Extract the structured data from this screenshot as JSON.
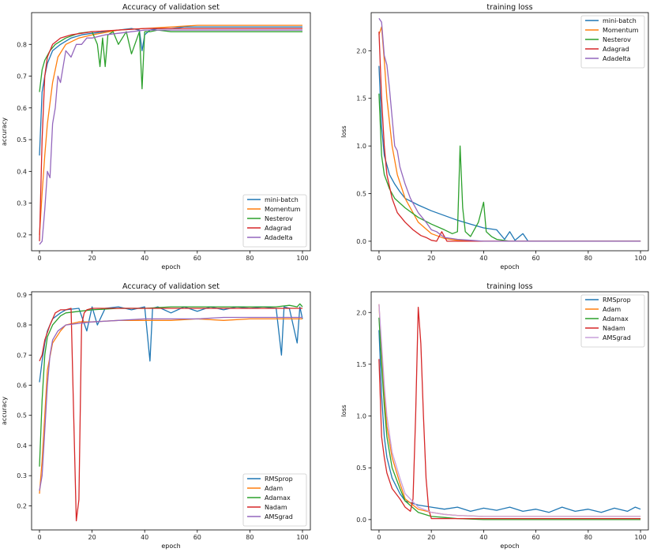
{
  "chart_data": [
    {
      "type": "line",
      "title": "Accuracy of validation set",
      "xlabel": "epoch",
      "ylabel": "accuracy",
      "xlim": [
        -3,
        103
      ],
      "ylim": [
        0.15,
        0.9
      ],
      "xticks": [
        0,
        20,
        40,
        60,
        80,
        100
      ],
      "yticks": [
        0.2,
        0.3,
        0.4,
        0.5,
        0.6,
        0.7,
        0.8
      ],
      "legend_position": "lower-right",
      "series": [
        {
          "name": "mini-batch",
          "color": "#1f77b4",
          "x": [
            0,
            1,
            2,
            3,
            5,
            8,
            12,
            16,
            20,
            25,
            30,
            35,
            38,
            39,
            40,
            42,
            45,
            50,
            55,
            60,
            70,
            80,
            90,
            100
          ],
          "values": [
            0.45,
            0.65,
            0.7,
            0.74,
            0.78,
            0.8,
            0.82,
            0.83,
            0.835,
            0.84,
            0.845,
            0.85,
            0.845,
            0.78,
            0.83,
            0.845,
            0.85,
            0.85,
            0.855,
            0.855,
            0.855,
            0.855,
            0.855,
            0.855
          ]
        },
        {
          "name": "Momentum",
          "color": "#ff7f0e",
          "x": [
            0,
            1,
            2,
            3,
            5,
            7,
            10,
            15,
            20,
            30,
            40,
            50,
            60,
            70,
            80,
            90,
            100
          ],
          "values": [
            0.2,
            0.33,
            0.45,
            0.55,
            0.68,
            0.76,
            0.8,
            0.82,
            0.83,
            0.845,
            0.85,
            0.855,
            0.86,
            0.86,
            0.86,
            0.86,
            0.86
          ]
        },
        {
          "name": "Nesterov",
          "color": "#2ca02c",
          "x": [
            0,
            1,
            2,
            4,
            6,
            10,
            15,
            20,
            22,
            23,
            24,
            25,
            26,
            28,
            30,
            33,
            35,
            38,
            39,
            40,
            42,
            45,
            50,
            60,
            70,
            80,
            90,
            100
          ],
          "values": [
            0.65,
            0.72,
            0.75,
            0.78,
            0.8,
            0.82,
            0.835,
            0.84,
            0.8,
            0.73,
            0.82,
            0.73,
            0.83,
            0.84,
            0.8,
            0.84,
            0.77,
            0.84,
            0.66,
            0.84,
            0.84,
            0.845,
            0.84,
            0.84,
            0.84,
            0.84,
            0.84,
            0.84
          ]
        },
        {
          "name": "Adagrad",
          "color": "#d62728",
          "x": [
            0,
            1,
            2,
            3,
            5,
            8,
            12,
            16,
            20,
            30,
            40,
            50,
            60,
            70,
            80,
            90,
            100
          ],
          "values": [
            0.18,
            0.5,
            0.7,
            0.76,
            0.8,
            0.82,
            0.83,
            0.835,
            0.84,
            0.845,
            0.85,
            0.85,
            0.85,
            0.85,
            0.85,
            0.85,
            0.85
          ]
        },
        {
          "name": "Adadelta",
          "color": "#9467bd",
          "x": [
            0,
            1,
            2,
            3,
            4,
            5,
            6,
            7,
            8,
            10,
            12,
            14,
            16,
            18,
            20,
            25,
            30,
            35,
            40,
            50,
            60,
            70,
            80,
            90,
            100
          ],
          "values": [
            0.17,
            0.18,
            0.28,
            0.4,
            0.38,
            0.55,
            0.6,
            0.7,
            0.68,
            0.78,
            0.76,
            0.8,
            0.8,
            0.82,
            0.82,
            0.83,
            0.835,
            0.84,
            0.845,
            0.845,
            0.845,
            0.845,
            0.845,
            0.845,
            0.845
          ]
        }
      ]
    },
    {
      "type": "line",
      "title": "training loss",
      "xlabel": "epoch",
      "ylabel": "loss",
      "xlim": [
        -3,
        103
      ],
      "ylim": [
        -0.1,
        2.4
      ],
      "xticks": [
        0,
        20,
        40,
        60,
        80,
        100
      ],
      "yticks": [
        0.0,
        0.5,
        1.0,
        1.5,
        2.0
      ],
      "legend_position": "top-right",
      "series": [
        {
          "name": "mini-batch",
          "color": "#1f77b4",
          "x": [
            0,
            1,
            2,
            4,
            6,
            8,
            10,
            15,
            20,
            25,
            30,
            35,
            40,
            45,
            48,
            50,
            52,
            55,
            57,
            60,
            70,
            80,
            90,
            100
          ],
          "values": [
            1.84,
            1.2,
            0.9,
            0.7,
            0.6,
            0.52,
            0.45,
            0.38,
            0.32,
            0.27,
            0.22,
            0.18,
            0.14,
            0.12,
            0.02,
            0.1,
            0.01,
            0.08,
            0.0,
            0.0,
            0.0,
            0.0,
            0.0,
            0.0
          ]
        },
        {
          "name": "Momentum",
          "color": "#ff7f0e",
          "x": [
            0,
            1,
            2,
            3,
            5,
            7,
            10,
            15,
            20,
            25,
            30,
            40,
            50,
            60,
            70,
            80,
            90,
            100
          ],
          "values": [
            2.17,
            2.25,
            1.9,
            1.5,
            1.0,
            0.7,
            0.45,
            0.2,
            0.08,
            0.03,
            0.01,
            0.0,
            0.0,
            0.0,
            0.0,
            0.0,
            0.0,
            0.0
          ]
        },
        {
          "name": "Nesterov",
          "color": "#2ca02c",
          "x": [
            0,
            1,
            2,
            4,
            6,
            10,
            15,
            20,
            25,
            28,
            30,
            31,
            32,
            33,
            35,
            38,
            40,
            41,
            43,
            45,
            50,
            60,
            70,
            80,
            90,
            100
          ],
          "values": [
            1.55,
            0.9,
            0.7,
            0.55,
            0.45,
            0.35,
            0.25,
            0.18,
            0.12,
            0.08,
            0.1,
            1.0,
            0.35,
            0.1,
            0.05,
            0.2,
            0.41,
            0.1,
            0.05,
            0.02,
            0.0,
            0.0,
            0.0,
            0.0,
            0.0,
            0.0
          ]
        },
        {
          "name": "Adagrad",
          "color": "#d62728",
          "x": [
            0,
            1,
            2,
            3,
            5,
            7,
            10,
            13,
            16,
            18,
            20,
            22,
            24,
            26,
            28,
            30,
            40,
            50,
            60,
            70,
            80,
            90,
            100
          ],
          "values": [
            2.2,
            1.5,
            1.0,
            0.7,
            0.45,
            0.3,
            0.2,
            0.12,
            0.06,
            0.04,
            0.01,
            0.0,
            0.1,
            0.0,
            0.0,
            0.0,
            0.0,
            0.0,
            0.0,
            0.0,
            0.0,
            0.0,
            0.0
          ]
        },
        {
          "name": "Adadelta",
          "color": "#9467bd",
          "x": [
            0,
            1,
            2,
            3,
            4,
            5,
            6,
            7,
            8,
            10,
            12,
            15,
            18,
            20,
            22,
            25,
            30,
            35,
            40,
            50,
            60,
            70,
            80,
            90,
            100
          ],
          "values": [
            2.34,
            2.3,
            1.95,
            1.85,
            1.6,
            1.3,
            1.0,
            0.95,
            0.78,
            0.6,
            0.45,
            0.3,
            0.2,
            0.12,
            0.1,
            0.04,
            0.02,
            0.01,
            0.0,
            0.0,
            0.0,
            0.0,
            0.0,
            0.0,
            0.0
          ]
        }
      ]
    },
    {
      "type": "line",
      "title": "Accuracy of validation set",
      "xlabel": "epoch",
      "ylabel": "accuracy",
      "xlim": [
        -3,
        103
      ],
      "ylim": [
        0.12,
        0.91
      ],
      "xticks": [
        0,
        20,
        40,
        60,
        80,
        100
      ],
      "yticks": [
        0.2,
        0.3,
        0.4,
        0.5,
        0.6,
        0.7,
        0.8,
        0.9
      ],
      "legend_position": "lower-right",
      "series": [
        {
          "name": "RMSprop",
          "color": "#1f77b4",
          "x": [
            0,
            1,
            2,
            3,
            5,
            8,
            10,
            15,
            18,
            20,
            22,
            25,
            30,
            35,
            40,
            42,
            43,
            45,
            50,
            55,
            60,
            65,
            70,
            75,
            80,
            85,
            90,
            92,
            93,
            95,
            98,
            99,
            100
          ],
          "values": [
            0.61,
            0.68,
            0.74,
            0.78,
            0.82,
            0.84,
            0.85,
            0.855,
            0.78,
            0.86,
            0.8,
            0.855,
            0.86,
            0.85,
            0.86,
            0.68,
            0.855,
            0.86,
            0.84,
            0.86,
            0.845,
            0.86,
            0.85,
            0.86,
            0.855,
            0.86,
            0.855,
            0.7,
            0.86,
            0.855,
            0.74,
            0.86,
            0.82
          ]
        },
        {
          "name": "Adam",
          "color": "#ff7f0e",
          "x": [
            0,
            1,
            2,
            3,
            5,
            8,
            10,
            15,
            20,
            30,
            40,
            50,
            60,
            70,
            80,
            90,
            100
          ],
          "values": [
            0.24,
            0.35,
            0.5,
            0.65,
            0.74,
            0.78,
            0.8,
            0.81,
            0.81,
            0.815,
            0.815,
            0.815,
            0.82,
            0.815,
            0.82,
            0.82,
            0.82
          ]
        },
        {
          "name": "Adamax",
          "color": "#2ca02c",
          "x": [
            0,
            1,
            2,
            3,
            5,
            8,
            10,
            15,
            20,
            30,
            40,
            50,
            60,
            70,
            80,
            90,
            95,
            98,
            99,
            100
          ],
          "values": [
            0.33,
            0.55,
            0.7,
            0.76,
            0.8,
            0.83,
            0.84,
            0.845,
            0.85,
            0.855,
            0.855,
            0.86,
            0.86,
            0.86,
            0.86,
            0.86,
            0.865,
            0.86,
            0.87,
            0.86
          ]
        },
        {
          "name": "Nadam",
          "color": "#d62728",
          "x": [
            0,
            1,
            2,
            4,
            6,
            8,
            10,
            12,
            13,
            14,
            15,
            16,
            17,
            18,
            20,
            25,
            30,
            40,
            50,
            60,
            70,
            80,
            90,
            100
          ],
          "values": [
            0.68,
            0.7,
            0.75,
            0.8,
            0.84,
            0.85,
            0.85,
            0.855,
            0.5,
            0.15,
            0.22,
            0.8,
            0.84,
            0.85,
            0.855,
            0.855,
            0.855,
            0.855,
            0.855,
            0.855,
            0.855,
            0.855,
            0.855,
            0.855
          ]
        },
        {
          "name": "AMSgrad",
          "color": "#9467bd",
          "x": [
            0,
            1,
            2,
            3,
            4,
            5,
            7,
            10,
            15,
            20,
            30,
            40,
            50,
            60,
            70,
            80,
            90,
            100
          ],
          "values": [
            0.25,
            0.3,
            0.45,
            0.6,
            0.7,
            0.75,
            0.78,
            0.8,
            0.805,
            0.81,
            0.815,
            0.82,
            0.82,
            0.82,
            0.825,
            0.825,
            0.825,
            0.825
          ]
        }
      ]
    },
    {
      "type": "line",
      "title": "training loss",
      "xlabel": "epoch",
      "ylabel": "loss",
      "xlim": [
        -3,
        103
      ],
      "ylim": [
        -0.1,
        2.2
      ],
      "xticks": [
        0,
        20,
        40,
        60,
        80,
        100
      ],
      "yticks": [
        0.0,
        0.5,
        1.0,
        1.5,
        2.0
      ],
      "legend_position": "top-right",
      "series": [
        {
          "name": "RMSprop",
          "color": "#1f77b4",
          "x": [
            0,
            1,
            2,
            3,
            5,
            8,
            10,
            15,
            20,
            25,
            30,
            35,
            40,
            45,
            50,
            55,
            60,
            65,
            70,
            75,
            80,
            85,
            90,
            95,
            98,
            100
          ],
          "values": [
            1.83,
            1.2,
            0.8,
            0.6,
            0.4,
            0.25,
            0.18,
            0.14,
            0.12,
            0.1,
            0.12,
            0.08,
            0.11,
            0.09,
            0.12,
            0.08,
            0.1,
            0.07,
            0.12,
            0.08,
            0.1,
            0.07,
            0.11,
            0.08,
            0.12,
            0.1
          ]
        },
        {
          "name": "Adam",
          "color": "#ff7f0e",
          "x": [
            0,
            1,
            2,
            3,
            5,
            8,
            10,
            15,
            20,
            25,
            30,
            40,
            50,
            60,
            70,
            80,
            90,
            100
          ],
          "values": [
            2.08,
            1.6,
            1.2,
            0.9,
            0.6,
            0.35,
            0.2,
            0.1,
            0.07,
            0.05,
            0.04,
            0.03,
            0.03,
            0.03,
            0.03,
            0.03,
            0.03,
            0.03
          ]
        },
        {
          "name": "Adamax",
          "color": "#2ca02c",
          "x": [
            0,
            1,
            2,
            3,
            5,
            8,
            10,
            15,
            20,
            25,
            30,
            40,
            50,
            60,
            70,
            80,
            90,
            100
          ],
          "values": [
            1.95,
            1.5,
            1.1,
            0.8,
            0.5,
            0.3,
            0.18,
            0.07,
            0.03,
            0.02,
            0.01,
            0.0,
            0.0,
            0.0,
            0.0,
            0.0,
            0.0,
            0.0
          ]
        },
        {
          "name": "Nadam",
          "color": "#d62728",
          "x": [
            0,
            1,
            2,
            3,
            5,
            8,
            10,
            12,
            13,
            14,
            15,
            16,
            17,
            18,
            19,
            20,
            25,
            30,
            40,
            50,
            60,
            70,
            80,
            90,
            100
          ],
          "values": [
            1.55,
            0.8,
            0.6,
            0.45,
            0.3,
            0.2,
            0.12,
            0.08,
            0.2,
            1.0,
            2.05,
            1.7,
            1.0,
            0.4,
            0.1,
            0.01,
            0.01,
            0.01,
            0.01,
            0.01,
            0.01,
            0.01,
            0.01,
            0.01,
            0.01
          ]
        },
        {
          "name": "AMSgrad",
          "color": "#c9a0dc",
          "x": [
            0,
            1,
            2,
            3,
            5,
            8,
            10,
            15,
            20,
            25,
            30,
            40,
            50,
            60,
            70,
            80,
            90,
            100
          ],
          "values": [
            2.08,
            1.7,
            1.3,
            1.0,
            0.65,
            0.4,
            0.25,
            0.12,
            0.07,
            0.05,
            0.04,
            0.03,
            0.03,
            0.03,
            0.03,
            0.03,
            0.03,
            0.03
          ]
        }
      ]
    }
  ]
}
